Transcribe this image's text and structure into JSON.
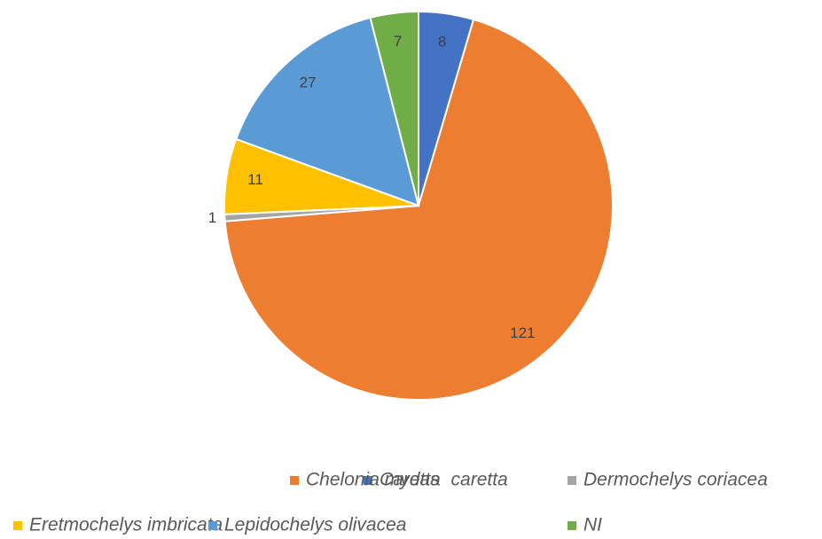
{
  "chart_data": {
    "type": "pie",
    "categories": [
      "Caretta  caretta",
      "Chelonia mydas",
      "Dermochelys coriacea",
      "Eretmochelys imbricata",
      "Lepidochelys olivacea",
      "NI"
    ],
    "values": [
      8,
      121,
      1,
      11,
      27,
      7
    ],
    "colors": [
      "#4472c4",
      "#ed7d31",
      "#a5a5a5",
      "#ffc000",
      "#5b9bd5",
      "#70ad47"
    ],
    "legend": "bottom"
  }
}
